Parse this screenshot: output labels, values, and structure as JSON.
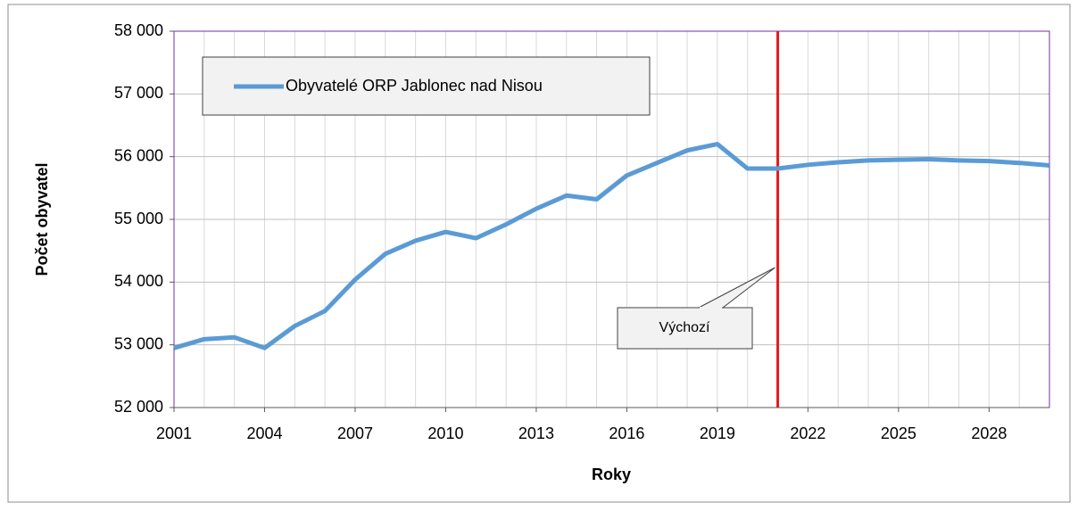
{
  "chart_data": {
    "type": "line",
    "x_label": "Roky",
    "y_label": "Počet obyvatel",
    "x": [
      2001,
      2002,
      2003,
      2004,
      2005,
      2006,
      2007,
      2008,
      2009,
      2010,
      2011,
      2012,
      2013,
      2014,
      2015,
      2016,
      2017,
      2018,
      2019,
      2020,
      2021,
      2022,
      2023,
      2024,
      2025,
      2026,
      2027,
      2028,
      2029,
      2030
    ],
    "series": [
      {
        "name": "Obyvatelé ORP Jablonec nad Nisou",
        "color": "#5b9bd5",
        "values": [
          52950,
          53090,
          53120,
          52950,
          53300,
          53540,
          54040,
          54450,
          54660,
          54800,
          54700,
          54920,
          55170,
          55380,
          55320,
          55700,
          55900,
          56100,
          56200,
          55810,
          55810,
          55870,
          55910,
          55940,
          55950,
          55960,
          55940,
          55930,
          55900,
          55860
        ]
      }
    ],
    "xlim": [
      2001,
      2030
    ],
    "xticks": [
      2001,
      2004,
      2007,
      2010,
      2013,
      2016,
      2019,
      2022,
      2025,
      2028
    ],
    "ylim": [
      52000,
      58000
    ],
    "yticks": [
      {
        "value": 52000,
        "label": "52 000"
      },
      {
        "value": 53000,
        "label": "53 000"
      },
      {
        "value": 54000,
        "label": "54 000"
      },
      {
        "value": 55000,
        "label": "55 000"
      },
      {
        "value": 56000,
        "label": "56 000"
      },
      {
        "value": 57000,
        "label": "57 000"
      },
      {
        "value": 58000,
        "label": "58 000"
      }
    ],
    "grid": true,
    "legend": "upper left",
    "annotation": {
      "text": "Výchozí",
      "x": 2021,
      "color": "#e41a1c"
    }
  }
}
